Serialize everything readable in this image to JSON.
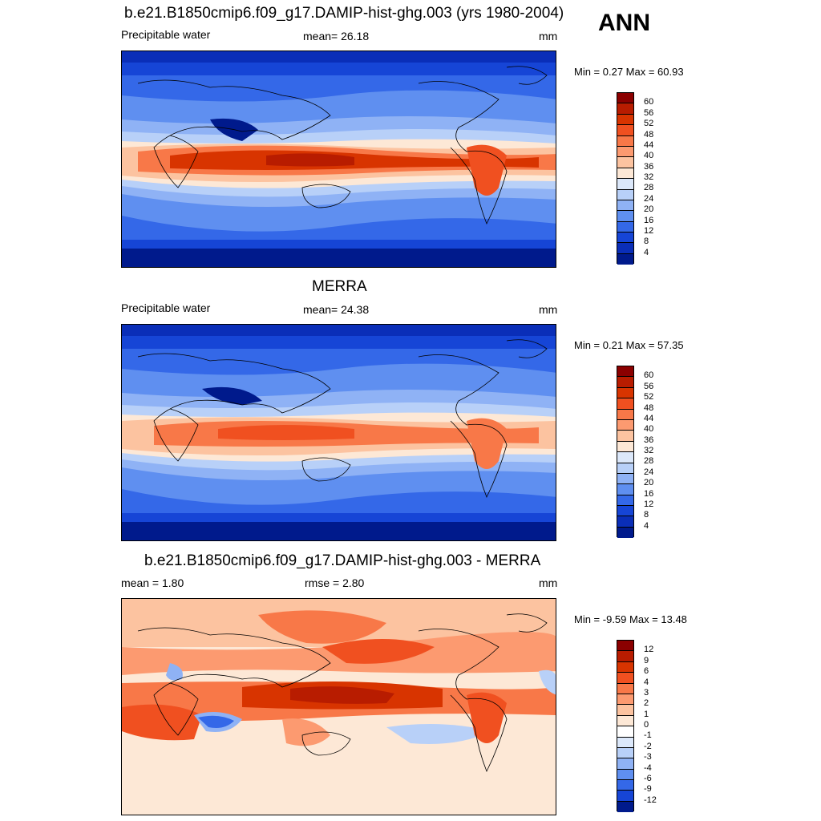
{
  "season": "ANN",
  "panels": [
    {
      "title": "b.e21.B1850cmip6.f09_g17.DAMIP-hist-ghg.003 (yrs 1980-2004)",
      "left_label": "Precipitable water",
      "center_label": "mean=  26.18",
      "units": "mm",
      "minmax": "Min =   0.27 Max =  60.93",
      "levels": [
        "60",
        "56",
        "52",
        "48",
        "44",
        "40",
        "36",
        "32",
        "28",
        "24",
        "20",
        "16",
        "12",
        "8",
        "4"
      ],
      "colors": [
        "#8b0000",
        "#b81c00",
        "#d83400",
        "#f05020",
        "#f87848",
        "#fc9a70",
        "#fcc3a0",
        "#fde8d6",
        "#dce8fa",
        "#b8d0f8",
        "#8fb2f5",
        "#5f8ff0",
        "#3468e8",
        "#1645d6",
        "#0a2eb8",
        "#001a8c"
      ]
    },
    {
      "title": "MERRA",
      "left_label": "Precipitable water",
      "center_label": "mean=  24.38",
      "units": "mm",
      "minmax": "Min =   0.21 Max =  57.35",
      "levels": [
        "60",
        "56",
        "52",
        "48",
        "44",
        "40",
        "36",
        "32",
        "28",
        "24",
        "20",
        "16",
        "12",
        "8",
        "4"
      ],
      "colors": [
        "#8b0000",
        "#b81c00",
        "#d83400",
        "#f05020",
        "#f87848",
        "#fc9a70",
        "#fcc3a0",
        "#fde8d6",
        "#dce8fa",
        "#b8d0f8",
        "#8fb2f5",
        "#5f8ff0",
        "#3468e8",
        "#1645d6",
        "#0a2eb8",
        "#001a8c"
      ]
    },
    {
      "title": "b.e21.B1850cmip6.f09_g17.DAMIP-hist-ghg.003 - MERRA",
      "left_label": "mean =   1.80",
      "center_label": "rmse =   2.80",
      "units": "mm",
      "minmax": "Min =  -9.59 Max =  13.48",
      "levels": [
        "12",
        "9",
        "6",
        "4",
        "3",
        "2",
        "1",
        "0",
        "-1",
        "-2",
        "-3",
        "-4",
        "-6",
        "-9",
        "-12"
      ],
      "colors": [
        "#8b0000",
        "#b81c00",
        "#d83400",
        "#f05020",
        "#f87848",
        "#fc9a70",
        "#fcc3a0",
        "#fde8d6",
        "#ffffff",
        "#dce8fa",
        "#b8d0f8",
        "#8fb2f5",
        "#5f8ff0",
        "#3468e8",
        "#1645d6",
        "#001a8c"
      ]
    }
  ]
}
